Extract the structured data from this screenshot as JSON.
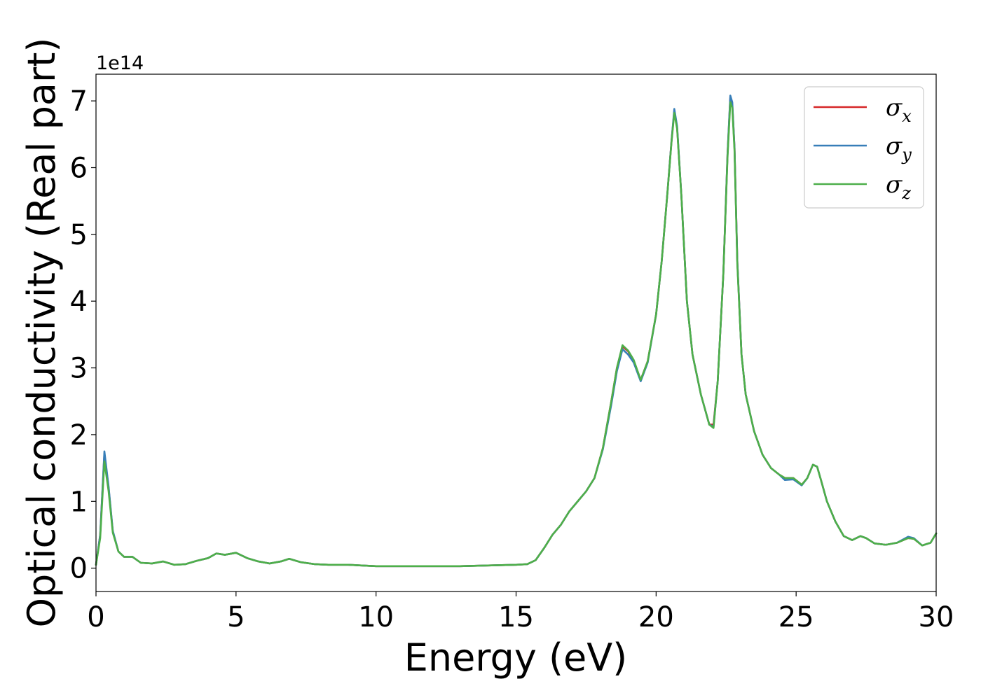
{
  "chart_data": {
    "type": "line",
    "xlabel": "Energy (eV)",
    "ylabel": "Optical conductivity (Real part)",
    "y_offset_text": "1e14",
    "y_scale": 100000000000000.0,
    "xlim": [
      0,
      30
    ],
    "ylim": [
      -0.35,
      7.4
    ],
    "x_ticks": [
      0,
      5,
      10,
      15,
      20,
      25,
      30
    ],
    "y_ticks": [
      0,
      1,
      2,
      3,
      4,
      5,
      6,
      7
    ],
    "grid": false,
    "legend_position": "top-right",
    "x": [
      0,
      0.15,
      0.3,
      0.45,
      0.6,
      0.8,
      1.0,
      1.3,
      1.6,
      2.0,
      2.4,
      2.8,
      3.2,
      3.6,
      4.0,
      4.3,
      4.6,
      5.0,
      5.4,
      5.8,
      6.2,
      6.6,
      6.9,
      7.3,
      7.8,
      8.3,
      9.0,
      10.0,
      11.0,
      12.0,
      13.0,
      14.0,
      15.0,
      15.4,
      15.7,
      16.0,
      16.3,
      16.6,
      16.9,
      17.2,
      17.5,
      17.8,
      18.1,
      18.4,
      18.6,
      18.8,
      19.0,
      19.2,
      19.45,
      19.7,
      20.0,
      20.2,
      20.4,
      20.55,
      20.65,
      20.75,
      20.9,
      21.1,
      21.3,
      21.6,
      21.9,
      22.05,
      22.2,
      22.4,
      22.55,
      22.65,
      22.72,
      22.8,
      22.9,
      23.05,
      23.2,
      23.5,
      23.8,
      24.1,
      24.4,
      24.6,
      24.9,
      25.2,
      25.4,
      25.6,
      25.75,
      25.9,
      26.1,
      26.4,
      26.7,
      27.0,
      27.3,
      27.5,
      27.8,
      28.2,
      28.6,
      29.0,
      29.2,
      29.5,
      29.8,
      30.0
    ],
    "series": [
      {
        "name": "x",
        "color": "#d62728",
        "values": [
          0.05,
          0.5,
          1.72,
          1.2,
          0.55,
          0.25,
          0.17,
          0.17,
          0.08,
          0.07,
          0.1,
          0.05,
          0.06,
          0.11,
          0.15,
          0.22,
          0.2,
          0.23,
          0.15,
          0.1,
          0.07,
          0.1,
          0.14,
          0.09,
          0.06,
          0.05,
          0.05,
          0.03,
          0.03,
          0.03,
          0.03,
          0.04,
          0.05,
          0.06,
          0.12,
          0.3,
          0.5,
          0.65,
          0.85,
          1.0,
          1.15,
          1.35,
          1.8,
          2.5,
          3.0,
          3.32,
          3.25,
          3.1,
          2.82,
          3.1,
          3.8,
          4.6,
          5.6,
          6.4,
          6.85,
          6.6,
          5.6,
          4.0,
          3.2,
          2.6,
          2.15,
          2.15,
          2.8,
          4.4,
          6.2,
          7.05,
          6.95,
          6.3,
          4.6,
          3.2,
          2.6,
          2.05,
          1.7,
          1.5,
          1.4,
          1.35,
          1.35,
          1.25,
          1.35,
          1.55,
          1.52,
          1.3,
          1.0,
          0.7,
          0.48,
          0.42,
          0.48,
          0.45,
          0.37,
          0.35,
          0.38,
          0.45,
          0.44,
          0.34,
          0.38,
          0.52
        ]
      },
      {
        "name": "y",
        "color": "#377eb8",
        "values": [
          0.05,
          0.5,
          1.75,
          1.22,
          0.56,
          0.25,
          0.17,
          0.17,
          0.08,
          0.07,
          0.1,
          0.05,
          0.06,
          0.11,
          0.15,
          0.22,
          0.2,
          0.23,
          0.15,
          0.1,
          0.07,
          0.1,
          0.14,
          0.09,
          0.06,
          0.05,
          0.05,
          0.03,
          0.03,
          0.03,
          0.03,
          0.04,
          0.05,
          0.06,
          0.12,
          0.3,
          0.5,
          0.65,
          0.85,
          1.0,
          1.15,
          1.35,
          1.78,
          2.45,
          2.95,
          3.28,
          3.2,
          3.08,
          2.8,
          3.08,
          3.8,
          4.6,
          5.6,
          6.4,
          6.88,
          6.62,
          5.6,
          4.0,
          3.2,
          2.6,
          2.15,
          2.12,
          2.8,
          4.4,
          6.2,
          7.08,
          6.98,
          6.3,
          4.6,
          3.2,
          2.6,
          2.05,
          1.7,
          1.5,
          1.4,
          1.32,
          1.33,
          1.24,
          1.35,
          1.55,
          1.52,
          1.3,
          1.0,
          0.7,
          0.48,
          0.42,
          0.48,
          0.45,
          0.37,
          0.35,
          0.38,
          0.47,
          0.45,
          0.34,
          0.38,
          0.52
        ]
      },
      {
        "name": "z",
        "color": "#4daf4a",
        "values": [
          0.05,
          0.45,
          1.6,
          1.15,
          0.53,
          0.25,
          0.17,
          0.17,
          0.08,
          0.07,
          0.1,
          0.05,
          0.06,
          0.11,
          0.15,
          0.22,
          0.2,
          0.23,
          0.15,
          0.1,
          0.07,
          0.1,
          0.14,
          0.09,
          0.06,
          0.05,
          0.05,
          0.03,
          0.03,
          0.03,
          0.03,
          0.04,
          0.05,
          0.06,
          0.12,
          0.3,
          0.5,
          0.65,
          0.85,
          1.0,
          1.15,
          1.35,
          1.8,
          2.5,
          3.0,
          3.34,
          3.26,
          3.12,
          2.82,
          3.1,
          3.8,
          4.6,
          5.6,
          6.38,
          6.82,
          6.58,
          5.6,
          4.0,
          3.2,
          2.6,
          2.15,
          2.1,
          2.8,
          4.4,
          6.15,
          6.98,
          6.9,
          6.25,
          4.55,
          3.2,
          2.6,
          2.05,
          1.7,
          1.5,
          1.4,
          1.35,
          1.35,
          1.25,
          1.35,
          1.55,
          1.52,
          1.3,
          1.0,
          0.7,
          0.48,
          0.42,
          0.48,
          0.45,
          0.37,
          0.35,
          0.38,
          0.45,
          0.44,
          0.34,
          0.38,
          0.52
        ]
      }
    ],
    "legend": [
      {
        "symbol": "σ",
        "sub": "x",
        "color": "#d62728"
      },
      {
        "symbol": "σ",
        "sub": "y",
        "color": "#377eb8"
      },
      {
        "symbol": "σ",
        "sub": "z",
        "color": "#4daf4a"
      }
    ]
  }
}
